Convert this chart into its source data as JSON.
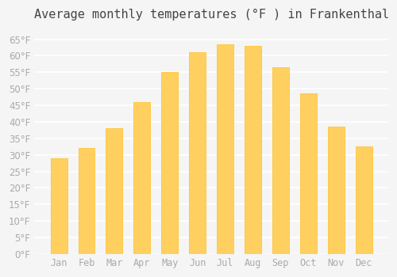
{
  "title": "Average monthly temperatures (°F ) in Frankenthal",
  "months": [
    "Jan",
    "Feb",
    "Mar",
    "Apr",
    "May",
    "Jun",
    "Jul",
    "Aug",
    "Sep",
    "Oct",
    "Nov",
    "Dec"
  ],
  "values": [
    29,
    32,
    38,
    46,
    55,
    61,
    63.5,
    63,
    56.5,
    48.5,
    38.5,
    32.5
  ],
  "bar_color_top": "#FFC020",
  "bar_color_bottom": "#FFD060",
  "bar_edge_color": "#FFA500",
  "background_color": "#F5F5F5",
  "grid_color": "#FFFFFF",
  "yticks": [
    0,
    5,
    10,
    15,
    20,
    25,
    30,
    35,
    40,
    45,
    50,
    55,
    60,
    65
  ],
  "ylim": [
    0,
    68
  ],
  "title_fontsize": 11,
  "tick_fontsize": 8.5,
  "tick_color": "#AAAAAA"
}
